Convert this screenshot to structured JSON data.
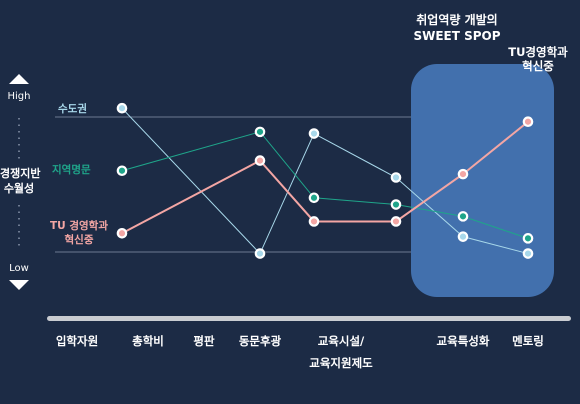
{
  "highlight": {
    "title_line1": "취업역량 개발의",
    "title_line2": "SWEET SPOP"
  },
  "tu_top_label": {
    "line1": "TU경영학과",
    "line2": "혁신중"
  },
  "y_axis": {
    "label_line1": "경쟁지반",
    "label_line2": "수월성",
    "high": "High",
    "low": "Low"
  },
  "colors": {
    "background": "#1c2b45",
    "highlight_box": "#4270ad",
    "series_sudo": "#a8d8ea",
    "series_jiyeok": "#1fa58a",
    "series_tu": "#f3a6a4",
    "axis_bar": "#c9ccd1"
  },
  "chart_data": {
    "type": "line",
    "categories": [
      "입학자원",
      "총학비",
      "평판",
      "동문후광",
      "교육시설/\n교육지원제도",
      "교육특성화",
      "멘토링"
    ],
    "ylim": [
      0,
      10
    ],
    "grid": false,
    "series": [
      {
        "name": "수도권",
        "label_lines": [
          "수도권"
        ],
        "values": [
          9.1,
          null,
          0.5,
          7.6,
          5.0,
          1.5,
          0.5
        ]
      },
      {
        "name": "지역명문",
        "label_lines": [
          "지역명문"
        ],
        "values": [
          5.4,
          null,
          7.7,
          3.8,
          3.4,
          2.7,
          1.4
        ]
      },
      {
        "name": "TU 경영학과 혁신중",
        "label_lines": [
          "TU 경영학과",
          "혁신중"
        ],
        "values": [
          1.7,
          null,
          6.0,
          2.4,
          2.4,
          5.2,
          8.3
        ]
      }
    ]
  }
}
